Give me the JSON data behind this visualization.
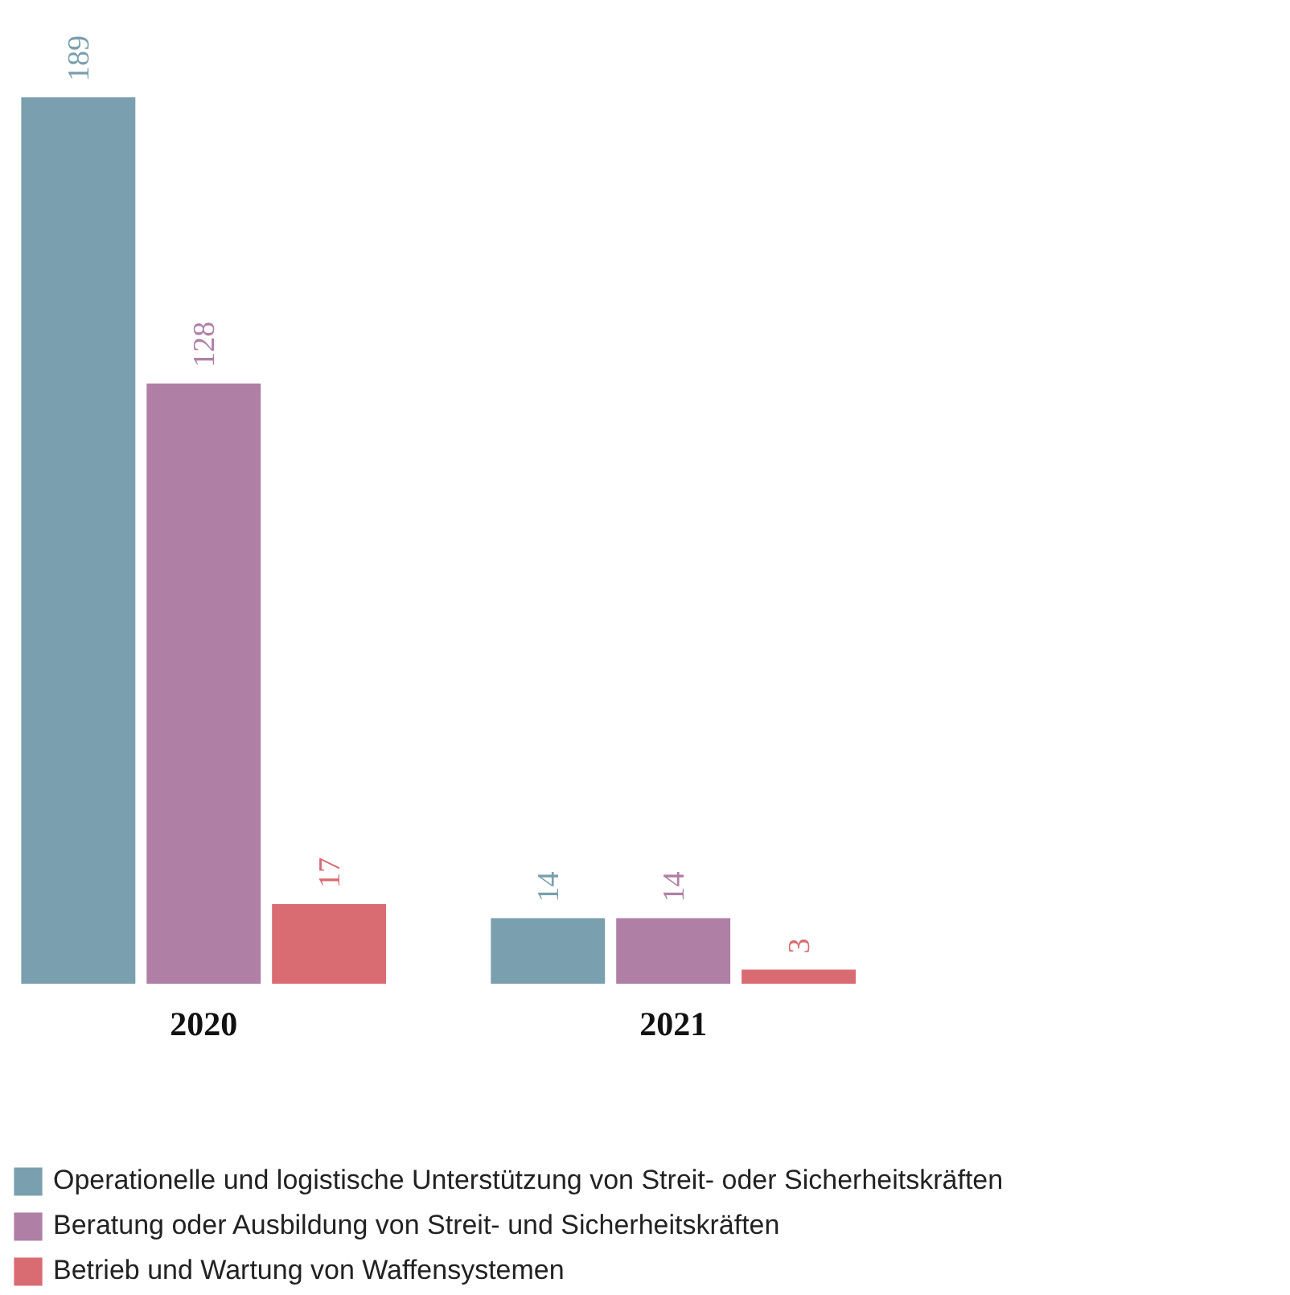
{
  "chart_data": {
    "type": "bar",
    "categories": [
      "2020",
      "2021"
    ],
    "series": [
      {
        "name": "Operationelle und logistische Unterstützung von Streit- oder Sicherheitskräften",
        "color": "#7a9fae",
        "values": [
          189,
          14
        ]
      },
      {
        "name": "Beratung oder Ausbildung von Streit- und Sicherheitskräften",
        "color": "#b07fa5",
        "values": [
          128,
          14
        ]
      },
      {
        "name": "Betrieb und Wartung von Waffensystemen",
        "color": "#d96b72",
        "values": [
          17,
          3
        ]
      }
    ],
    "data_labels": true,
    "grid": false,
    "legend": "bottom",
    "tick_labels": "x"
  }
}
